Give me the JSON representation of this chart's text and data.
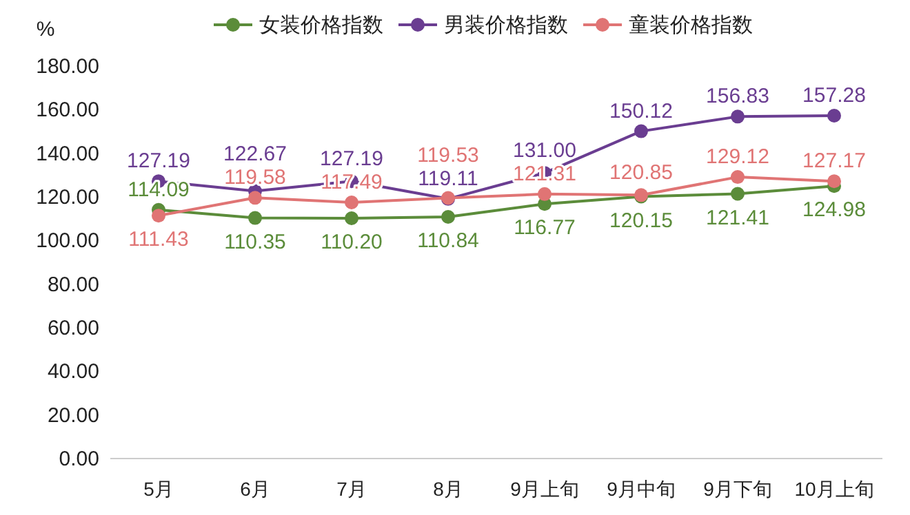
{
  "chart_data": {
    "type": "line",
    "ylabel": "%",
    "categories": [
      "5月",
      "6月",
      "7月",
      "8月",
      "9月上旬",
      "9月中旬",
      "9月下旬",
      "10月上旬"
    ],
    "series": [
      {
        "name": "女装价格指数",
        "color": "#5b8c3a",
        "values": [
          114.09,
          110.35,
          110.2,
          110.84,
          116.77,
          120.15,
          121.41,
          124.98
        ],
        "value_labels": [
          "114.09",
          "110.35",
          "110.20",
          "110.84",
          "116.77",
          "120.15",
          "121.41",
          "124.98"
        ]
      },
      {
        "name": "男装价格指数",
        "color": "#6a3d91",
        "values": [
          127.19,
          122.67,
          127.19,
          119.11,
          131.0,
          150.12,
          156.83,
          157.28
        ],
        "value_labels": [
          "127.19",
          "122.67",
          "127.19",
          "119.11",
          "131.00",
          "150.12",
          "156.83",
          "157.28"
        ]
      },
      {
        "name": "童装价格指数",
        "color": "#e07474",
        "values": [
          111.43,
          119.58,
          117.49,
          119.53,
          121.31,
          120.85,
          129.12,
          127.17
        ],
        "value_labels": [
          "111.43",
          "119.58",
          "117.49",
          "119.53",
          "121.31",
          "120.85",
          "129.12",
          "127.17"
        ]
      }
    ],
    "ylim": [
      0,
      180
    ],
    "yticks": [
      {
        "value": 0,
        "label": "0.00"
      },
      {
        "value": 20,
        "label": "20.00"
      },
      {
        "value": 40,
        "label": "40.00"
      },
      {
        "value": 60,
        "label": "60.00"
      },
      {
        "value": 80,
        "label": "80.00"
      },
      {
        "value": 100,
        "label": "100.00"
      },
      {
        "value": 120,
        "label": "120.00"
      },
      {
        "value": 140,
        "label": "140.00"
      },
      {
        "value": 160,
        "label": "160.00"
      },
      {
        "value": 180,
        "label": "180.00"
      }
    ],
    "grid": false,
    "legend": "top",
    "marker": "circle",
    "line_style": "solid"
  }
}
